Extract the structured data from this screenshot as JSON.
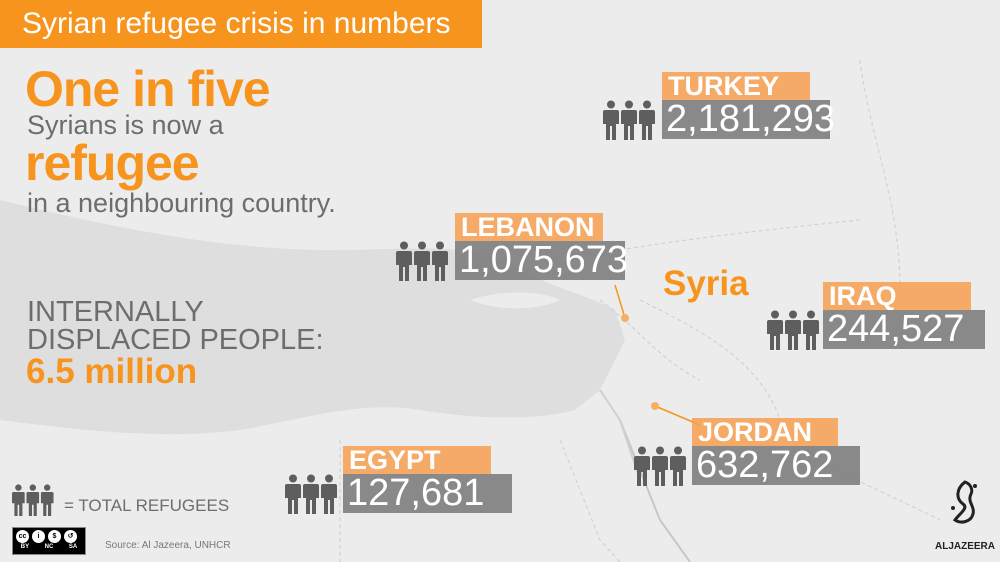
{
  "header": {
    "title": "Syrian refugee crisis in numbers"
  },
  "headline": {
    "line1": "One in five",
    "line2": "Syrians is now a",
    "line3": "refugee",
    "line4": "in a neighbouring country."
  },
  "idp": {
    "line1": "INTERNALLY",
    "line2": "DISPLACED PEOPLE:",
    "value": "6.5 million"
  },
  "map_label": "Syria",
  "countries": [
    {
      "name": "TURKEY",
      "refugees": "2,181,293"
    },
    {
      "name": "LEBANON",
      "refugees": "1,075,673"
    },
    {
      "name": "IRAQ",
      "refugees": "244,527"
    },
    {
      "name": "JORDAN",
      "refugees": "632,762"
    },
    {
      "name": "EGYPT",
      "refugees": "127,681"
    }
  ],
  "legend": {
    "icon": "people-icon",
    "label": "= TOTAL REFUGEES"
  },
  "license": {
    "icon": "creative-commons-icon",
    "labels": [
      "BY",
      "NC",
      "SA"
    ]
  },
  "source": "Source: Al Jazeera, UNHCR",
  "logo": {
    "text": "ALJAZEERA"
  },
  "colors": {
    "accent": "#f7941d",
    "label_bg": "#f5a35a",
    "number_bg": "#7a7a7a",
    "text_gray": "#6d6d6d",
    "background": "#ececec"
  }
}
